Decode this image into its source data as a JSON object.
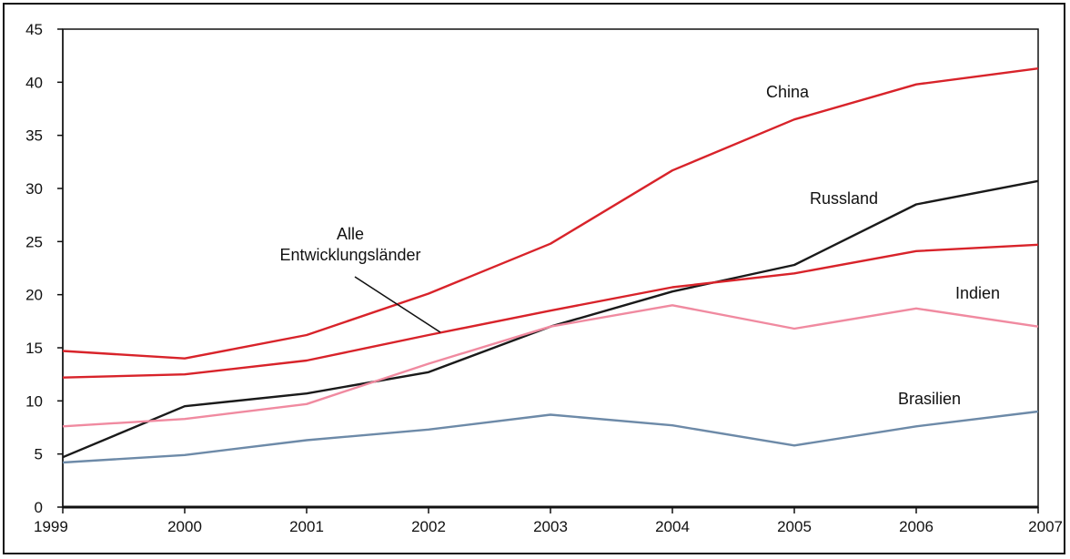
{
  "chart_data": {
    "type": "line",
    "title": "",
    "xlabel": "",
    "ylabel": "",
    "x": [
      1999,
      2000,
      2001,
      2002,
      2003,
      2004,
      2005,
      2006,
      2007
    ],
    "x_tick_labels": [
      "1999",
      "2000",
      "2001",
      "2002",
      "2003",
      "2004",
      "2005",
      "2006",
      "2007"
    ],
    "ylim": [
      0,
      45
    ],
    "y_ticks": [
      0,
      5,
      10,
      15,
      20,
      25,
      30,
      35,
      40,
      45
    ],
    "y_tick_labels": [
      "0",
      "5",
      "10",
      "15",
      "20",
      "25",
      "30",
      "35",
      "40",
      "45"
    ],
    "grid": false,
    "series": [
      {
        "name": "China",
        "color": "#d8232a",
        "values": [
          14.7,
          14.0,
          16.2,
          20.1,
          24.8,
          31.7,
          36.5,
          39.8,
          41.3
        ]
      },
      {
        "name": "Russland",
        "color": "#1a1a1a",
        "values": [
          4.7,
          9.5,
          10.7,
          12.7,
          17.0,
          20.3,
          22.8,
          28.5,
          30.7
        ]
      },
      {
        "name": "Alle Entwicklungsländer",
        "color": "#d8232a",
        "values": [
          12.2,
          12.5,
          13.8,
          16.2,
          18.5,
          20.7,
          22.0,
          24.1,
          24.7
        ]
      },
      {
        "name": "Indien",
        "color": "#f08aa0",
        "values": [
          7.6,
          8.3,
          9.7,
          13.5,
          17.0,
          19.0,
          16.8,
          18.7,
          17.0
        ]
      },
      {
        "name": "Brasilien",
        "color": "#6d8aa8",
        "values": [
          4.2,
          4.9,
          6.3,
          7.3,
          8.7,
          7.7,
          5.8,
          7.6,
          9.0
        ]
      }
    ],
    "annotations": [
      {
        "text": "China"
      },
      {
        "text": "Russland"
      },
      {
        "text": "Alle"
      },
      {
        "text": "Entwicklungsländer"
      },
      {
        "text": "Indien"
      },
      {
        "text": "Brasilien"
      }
    ]
  }
}
